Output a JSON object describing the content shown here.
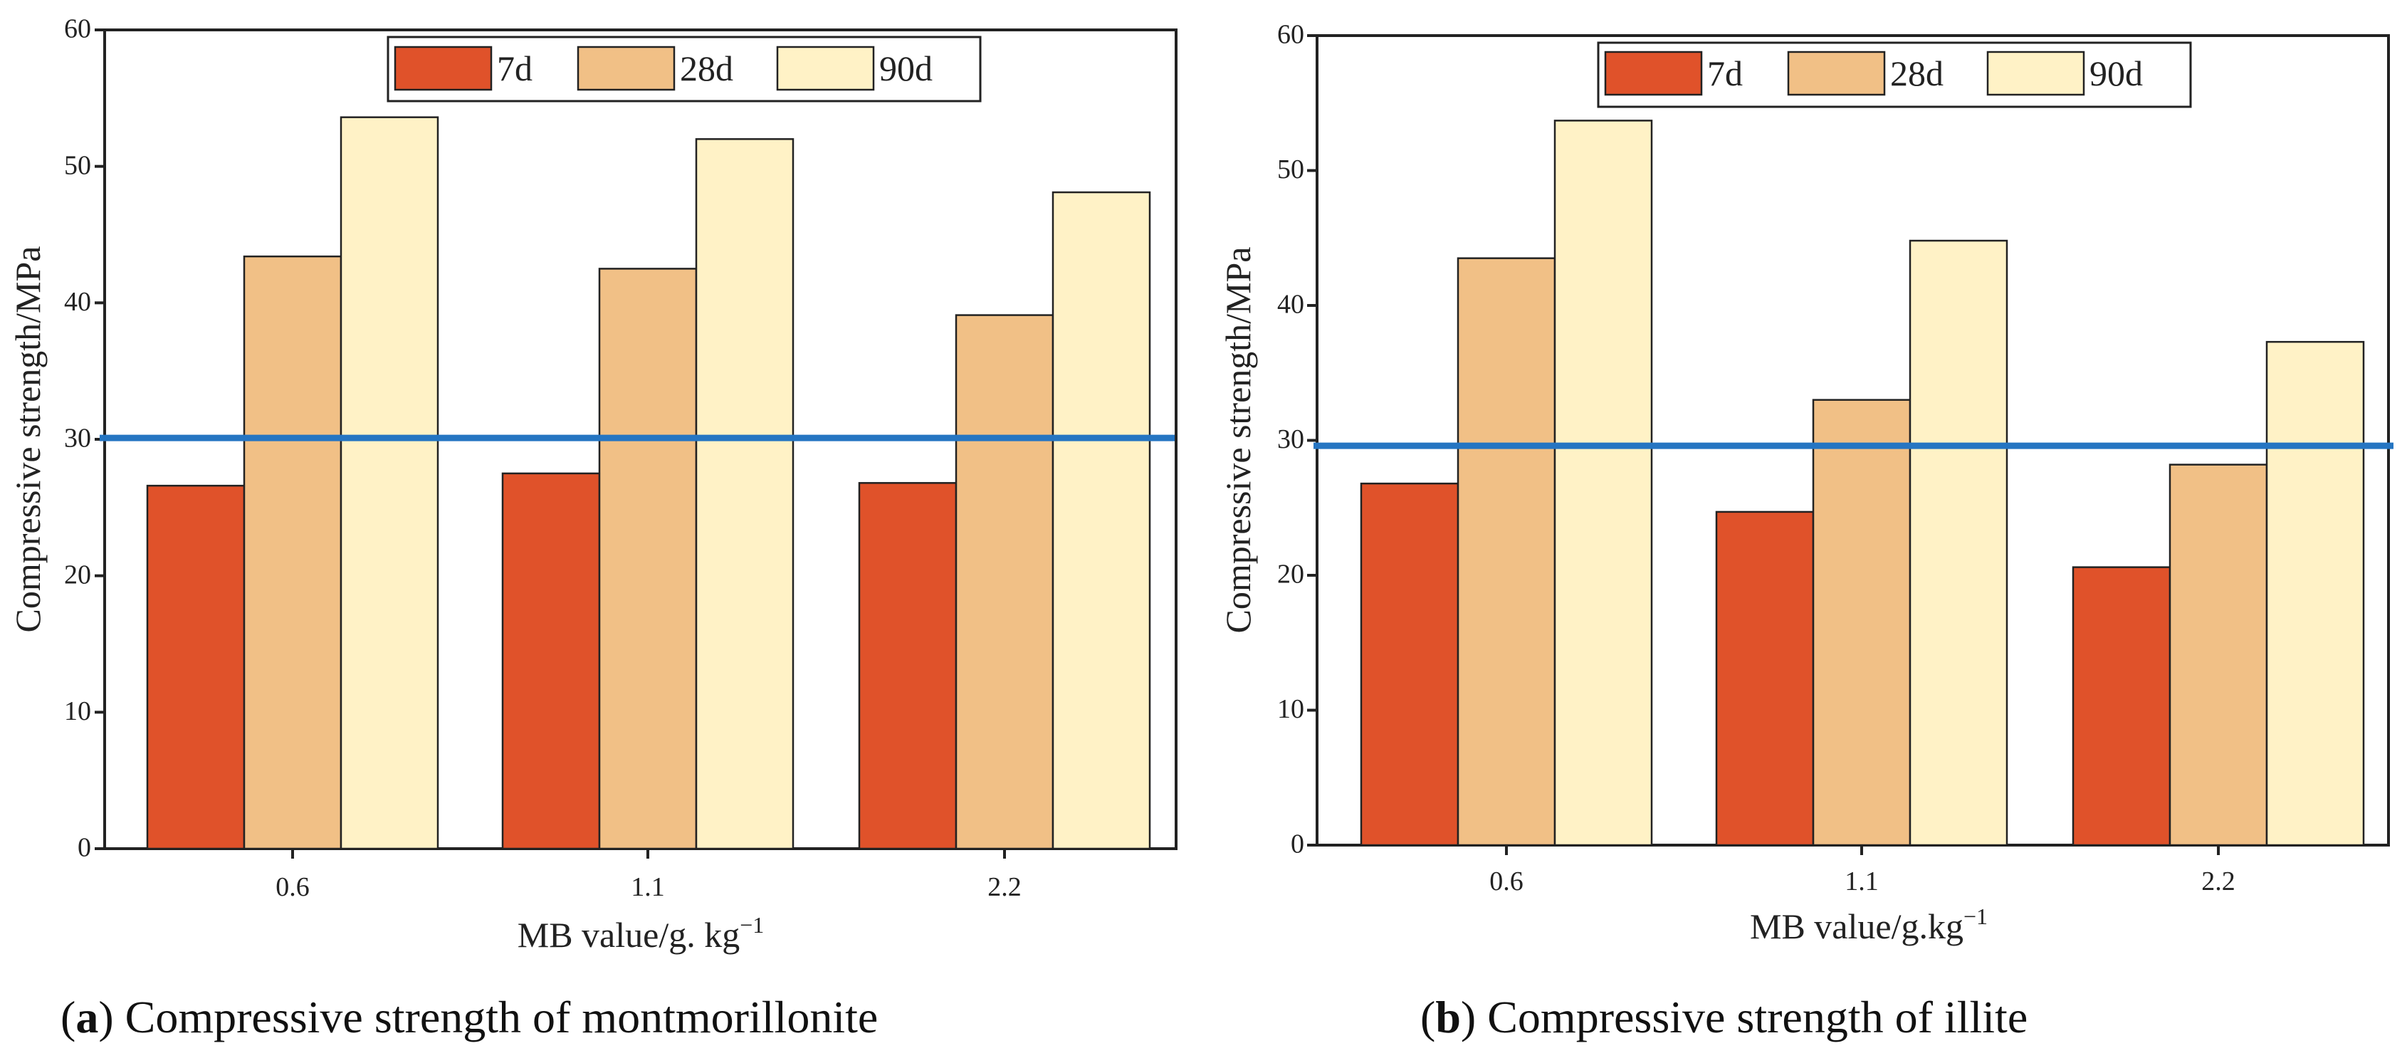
{
  "chart_data": [
    {
      "type": "bar",
      "caption_letter": "a",
      "caption_title": "Compressive strength of montmorillonite",
      "categories": [
        "0.6",
        "1.1",
        "2.2"
      ],
      "series": [
        {
          "name": "7d",
          "color": "#E0522A",
          "values": [
            26.6,
            27.5,
            26.8
          ]
        },
        {
          "name": "28d",
          "color": "#F1C086",
          "values": [
            43.4,
            42.5,
            39.1
          ]
        },
        {
          "name": "90d",
          "color": "#FFF2C6",
          "values": [
            53.6,
            52.0,
            48.1
          ]
        }
      ],
      "xlabel_main": "MB value/g. kg",
      "xlabel_sup": "−1",
      "ylabel": "Compressive strength/MPa",
      "ylim": [
        0,
        60
      ],
      "yticks": [
        "0",
        "10",
        "20",
        "30",
        "40",
        "50",
        "60"
      ],
      "reference_line": {
        "value": 30.1,
        "color": "#2575C2"
      },
      "legend_position": "top-center"
    },
    {
      "type": "bar",
      "caption_letter": "b",
      "caption_title": "Compressive strength of illite",
      "categories": [
        "0.6",
        "1.1",
        "2.2"
      ],
      "series": [
        {
          "name": "7d",
          "color": "#E0522A",
          "values": [
            26.8,
            24.7,
            20.6
          ]
        },
        {
          "name": "28d",
          "color": "#F1C086",
          "values": [
            43.5,
            33.0,
            28.2
          ]
        },
        {
          "name": "90d",
          "color": "#FFF2C6",
          "values": [
            53.7,
            44.8,
            37.3
          ]
        }
      ],
      "xlabel_main": "MB value/g.kg",
      "xlabel_sup": "−1",
      "ylabel": "Compressive strength/MPa",
      "ylim": [
        0,
        60
      ],
      "yticks": [
        "0",
        "10",
        "20",
        "30",
        "40",
        "50",
        "60"
      ],
      "reference_line": {
        "value": 29.6,
        "color": "#2575C2"
      },
      "legend_position": "top-center"
    }
  ]
}
